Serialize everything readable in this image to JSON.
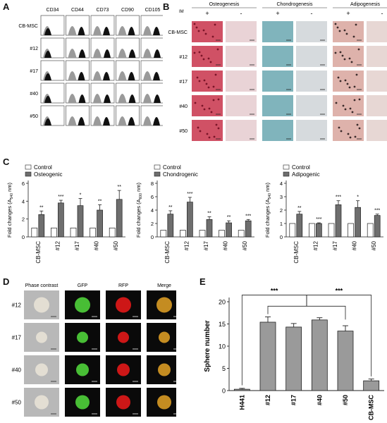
{
  "panels": {
    "A": "A",
    "B": "B",
    "C": "C",
    "D": "D",
    "E": "E"
  },
  "colors": {
    "gray": "#9a9a9a",
    "darkgray": "#6e6e6e",
    "histBlack": "#111111",
    "osteo": "#c8324a",
    "chondro": "#6aa7b0",
    "adipo": "#d8a49c"
  },
  "panelA": {
    "markers": [
      "CD34",
      "CD44",
      "CD73",
      "CD90",
      "CD105"
    ],
    "rows": [
      "CB-MSC",
      "#12",
      "#17",
      "#40",
      "#50"
    ]
  },
  "panelB": {
    "im_label": "IM",
    "groups": [
      "Osteogenesis",
      "Chondrogenesis",
      "Adipogenesis"
    ],
    "signs": [
      "+",
      "-"
    ],
    "rows": [
      "CB-MSC",
      "#12",
      "#17",
      "#40",
      "#50"
    ]
  },
  "panelC": {
    "ylabel": "Fold changes",
    "charts": [
      {
        "legend": [
          "Control",
          "Osteogenic"
        ],
        "sub": "A540",
        "unit": "nm",
        "ymax": 6,
        "yticks": [
          0,
          2,
          4,
          6
        ],
        "categories": [
          "CB-MSC",
          "#12",
          "#17",
          "#40",
          "#50"
        ],
        "control": [
          1,
          1,
          1,
          1,
          1
        ],
        "treat": [
          2.5,
          3.8,
          3.5,
          3.0,
          4.2
        ],
        "err": [
          0.4,
          0.3,
          0.8,
          0.6,
          1.0
        ],
        "sig": [
          "**",
          "***",
          "*",
          "**",
          "**"
        ]
      },
      {
        "legend": [
          "Control",
          "Chondrogenic"
        ],
        "sub": "A600",
        "unit": "nm",
        "ymax": 8,
        "yticks": [
          0,
          2,
          4,
          6,
          8
        ],
        "categories": [
          "CB-MSC",
          "#12",
          "#17",
          "#40",
          "#50"
        ],
        "control": [
          1,
          1,
          1,
          1,
          1
        ],
        "treat": [
          3.4,
          5.2,
          2.6,
          2.1,
          2.4
        ],
        "err": [
          0.5,
          0.7,
          0.4,
          0.3,
          0.2
        ],
        "sig": [
          "**",
          "***",
          "**",
          "**",
          "***"
        ]
      },
      {
        "legend": [
          "Control",
          "Adipogenic"
        ],
        "sub": "A540",
        "unit": "nm",
        "ymax": 4,
        "yticks": [
          0,
          1,
          2,
          3,
          4
        ],
        "categories": [
          "CB-MSC",
          "#12",
          "#17",
          "#40",
          "#50"
        ],
        "control": [
          1,
          1,
          1,
          1,
          1
        ],
        "treat": [
          1.7,
          1.0,
          2.4,
          2.2,
          1.6
        ],
        "err": [
          0.2,
          0.05,
          0.3,
          0.5,
          0.1
        ],
        "sig": [
          "**",
          "***",
          "***",
          "*",
          "***"
        ]
      }
    ]
  },
  "panelD": {
    "columns": [
      "Phase contrast",
      "GFP",
      "RFP",
      "Merge"
    ],
    "rows": [
      "#12",
      "#17",
      "#40",
      "#50"
    ]
  },
  "chart_data": {
    "type": "bar",
    "categories": [
      "H441",
      "#12",
      "#17",
      "#40",
      "#50",
      "CB-MSC"
    ],
    "values": [
      0.3,
      15.4,
      14.3,
      15.9,
      13.4,
      2.2
    ],
    "errors": [
      0.2,
      1.2,
      0.8,
      0.5,
      1.2,
      0.4
    ],
    "ylabel": "Sphere number",
    "ylim": [
      0,
      20
    ],
    "yticks": [
      0,
      5,
      10,
      15,
      20
    ],
    "significance": [
      "***",
      "***"
    ]
  }
}
